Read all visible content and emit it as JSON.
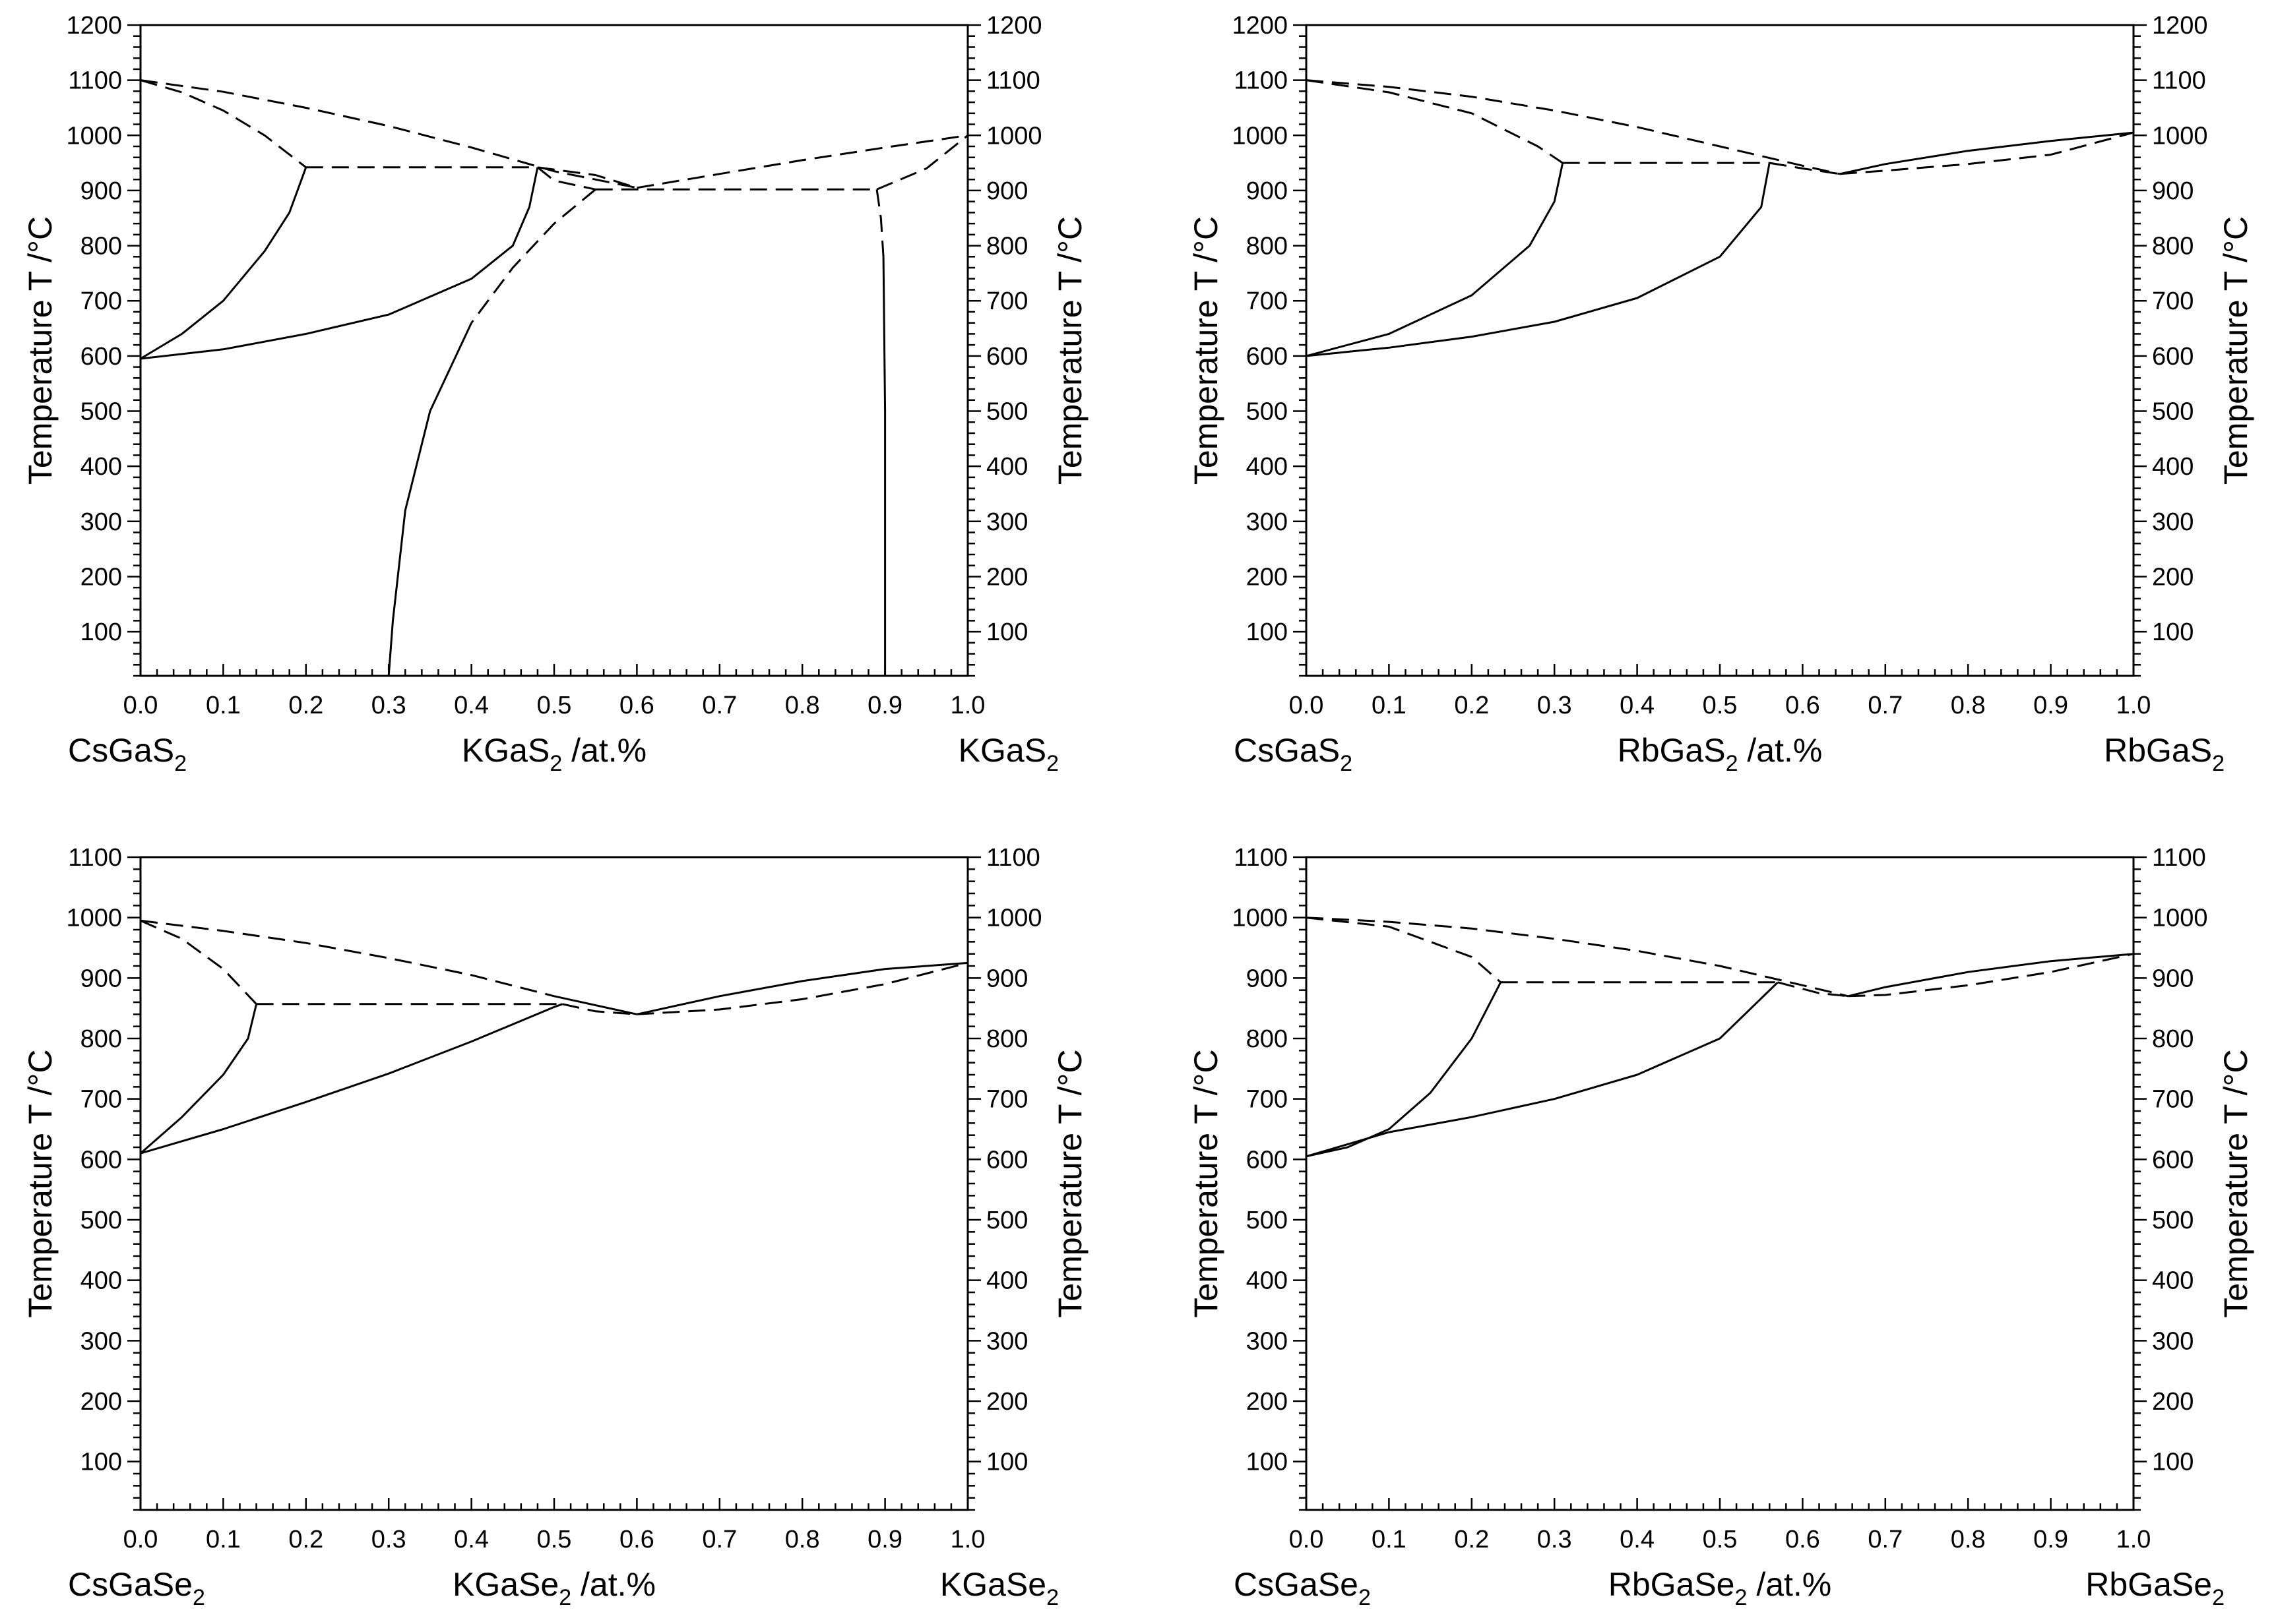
{
  "chart_data": [
    {
      "id": "cs-k-s",
      "type": "line",
      "subtype": "phase-diagram",
      "title": "",
      "ylabel": "Temperature T /°C",
      "y2label": "Temperature T /°C",
      "xlabel": {
        "base": "KGaS",
        "sub": "2",
        "suffix": " /at.%"
      },
      "left_component": {
        "base": "CsGaS",
        "sub": "2"
      },
      "right_component": {
        "base": "KGaS",
        "sub": "2"
      },
      "xlim": [
        0,
        1
      ],
      "ylim": [
        20,
        1200
      ],
      "x_ticks": [
        "0.0",
        "0.1",
        "0.2",
        "0.3",
        "0.4",
        "0.5",
        "0.6",
        "0.7",
        "0.8",
        "0.9",
        "1.0"
      ],
      "y_ticks": [
        "100",
        "200",
        "300",
        "400",
        "500",
        "600",
        "700",
        "800",
        "900",
        "1000",
        "1100",
        "1200"
      ],
      "series": [
        {
          "name": "liquidus-left",
          "style": "dashed",
          "x": [
            0,
            0.1,
            0.2,
            0.3,
            0.4,
            0.5,
            0.6
          ],
          "y": [
            1100,
            1079,
            1050,
            1017,
            978,
            935,
            905
          ]
        },
        {
          "name": "solvus-a-upper",
          "style": "dashed",
          "x": [
            0,
            0.05,
            0.1,
            0.15,
            0.2
          ],
          "y": [
            1100,
            1078,
            1045,
            1000,
            942
          ]
        },
        {
          "name": "peritectic-line",
          "style": "dashed",
          "x": [
            0.2,
            0.48
          ],
          "y": [
            942,
            942
          ]
        },
        {
          "name": "solvus-a-lower",
          "style": "solid",
          "x": [
            0,
            0.05,
            0.1,
            0.15,
            0.18,
            0.2
          ],
          "y": [
            595,
            640,
            700,
            790,
            860,
            942
          ]
        },
        {
          "name": "solidus-b",
          "style": "solid",
          "x": [
            0,
            0.1,
            0.2,
            0.3,
            0.4,
            0.45,
            0.47,
            0.48
          ],
          "y": [
            595,
            612,
            640,
            675,
            740,
            800,
            870,
            942
          ]
        },
        {
          "name": "peritectic-knee",
          "style": "dashed",
          "x": [
            0.48,
            0.5,
            0.55
          ],
          "y": [
            942,
            918,
            902
          ]
        },
        {
          "name": "minimum-curve",
          "style": "dashed",
          "x": [
            0.48,
            0.55,
            0.6
          ],
          "y": [
            942,
            928,
            905
          ]
        },
        {
          "name": "eutectic-line",
          "style": "dashed",
          "x": [
            0.55,
            0.89
          ],
          "y": [
            902,
            902
          ]
        },
        {
          "name": "liquidus-right",
          "style": "dashed",
          "x": [
            0.6,
            0.7,
            0.8,
            0.9,
            1.0
          ],
          "y": [
            905,
            930,
            955,
            978,
            1000
          ]
        },
        {
          "name": "solidus-right",
          "style": "dashed",
          "x": [
            0.89,
            0.95,
            1.0
          ],
          "y": [
            902,
            940,
            1000
          ]
        },
        {
          "name": "solvus-b-upper",
          "style": "dashed",
          "x": [
            0.55,
            0.5,
            0.45,
            0.4
          ],
          "y": [
            902,
            840,
            760,
            660
          ]
        },
        {
          "name": "solvus-b-lower",
          "style": "solid",
          "x": [
            0.4,
            0.35,
            0.32,
            0.305,
            0.3
          ],
          "y": [
            660,
            500,
            320,
            120,
            20
          ]
        },
        {
          "name": "solvus-c-upper",
          "style": "dashed",
          "x": [
            0.89,
            0.895,
            0.898
          ],
          "y": [
            902,
            850,
            780
          ]
        },
        {
          "name": "solvus-c-lower",
          "style": "solid",
          "x": [
            0.898,
            0.9,
            0.9
          ],
          "y": [
            780,
            500,
            20
          ]
        }
      ]
    },
    {
      "id": "cs-rb-s",
      "type": "line",
      "subtype": "phase-diagram",
      "title": "",
      "ylabel": "Temperature T /°C",
      "y2label": "Temperature T /°C",
      "xlabel": {
        "base": "RbGaS",
        "sub": "2",
        "suffix": " /at.%"
      },
      "left_component": {
        "base": "CsGaS",
        "sub": "2"
      },
      "right_component": {
        "base": "RbGaS",
        "sub": "2"
      },
      "xlim": [
        0,
        1
      ],
      "ylim": [
        20,
        1200
      ],
      "x_ticks": [
        "0.0",
        "0.1",
        "0.2",
        "0.3",
        "0.4",
        "0.5",
        "0.6",
        "0.7",
        "0.8",
        "0.9",
        "1.0"
      ],
      "y_ticks": [
        "100",
        "200",
        "300",
        "400",
        "500",
        "600",
        "700",
        "800",
        "900",
        "1000",
        "1100",
        "1200"
      ],
      "series": [
        {
          "name": "liquidus-left",
          "style": "dashed",
          "x": [
            0,
            0.1,
            0.2,
            0.3,
            0.4,
            0.5,
            0.6,
            0.645
          ],
          "y": [
            1100,
            1088,
            1070,
            1045,
            1015,
            980,
            945,
            930
          ]
        },
        {
          "name": "solvus-a-upper",
          "style": "dashed",
          "x": [
            0,
            0.1,
            0.2,
            0.28,
            0.31
          ],
          "y": [
            1100,
            1078,
            1040,
            980,
            950
          ]
        },
        {
          "name": "peritectic-line",
          "style": "dashed",
          "x": [
            0.31,
            0.56
          ],
          "y": [
            950,
            950
          ]
        },
        {
          "name": "solvus-a-lower",
          "style": "solid",
          "x": [
            0,
            0.1,
            0.2,
            0.27,
            0.3,
            0.31
          ],
          "y": [
            600,
            640,
            710,
            800,
            880,
            950
          ]
        },
        {
          "name": "solidus-b",
          "style": "solid",
          "x": [
            0,
            0.1,
            0.2,
            0.3,
            0.4,
            0.5,
            0.55,
            0.56
          ],
          "y": [
            600,
            615,
            635,
            662,
            705,
            780,
            870,
            950
          ]
        },
        {
          "name": "minimum-curve",
          "style": "dashed",
          "x": [
            0.56,
            0.6,
            0.645
          ],
          "y": [
            950,
            940,
            930
          ]
        },
        {
          "name": "liquidus-right",
          "style": "solid",
          "x": [
            0.645,
            0.7,
            0.8,
            0.9,
            1.0
          ],
          "y": [
            930,
            948,
            972,
            990,
            1005
          ]
        },
        {
          "name": "solidus-right",
          "style": "dashed",
          "x": [
            0.645,
            0.7,
            0.8,
            0.9,
            1.0
          ],
          "y": [
            930,
            936,
            948,
            965,
            1005
          ]
        }
      ]
    },
    {
      "id": "cs-k-se",
      "type": "line",
      "subtype": "phase-diagram",
      "title": "",
      "ylabel": "Temperature T /°C",
      "y2label": "Temperature T /°C",
      "xlabel": {
        "base": "KGaSe",
        "sub": "2",
        "suffix": " /at.%"
      },
      "left_component": {
        "base": "CsGaSe",
        "sub": "2"
      },
      "right_component": {
        "base": "KGaSe",
        "sub": "2"
      },
      "xlim": [
        0,
        1
      ],
      "ylim": [
        20,
        1100
      ],
      "x_ticks": [
        "0.0",
        "0.1",
        "0.2",
        "0.3",
        "0.4",
        "0.5",
        "0.6",
        "0.7",
        "0.8",
        "0.9",
        "1.0"
      ],
      "y_ticks": [
        "100",
        "200",
        "300",
        "400",
        "500",
        "600",
        "700",
        "800",
        "900",
        "1000",
        "1100"
      ],
      "series": [
        {
          "name": "liquidus-left",
          "style": "dashed",
          "x": [
            0,
            0.1,
            0.2,
            0.3,
            0.4,
            0.5
          ],
          "y": [
            995,
            978,
            958,
            933,
            905,
            870
          ]
        },
        {
          "name": "liquidus-left-end",
          "style": "solid",
          "x": [
            0.5,
            0.6
          ],
          "y": [
            870,
            840
          ]
        },
        {
          "name": "solvus-a-upper",
          "style": "dashed",
          "x": [
            0,
            0.05,
            0.1,
            0.14
          ],
          "y": [
            995,
            965,
            915,
            857
          ]
        },
        {
          "name": "peritectic-line",
          "style": "dashed",
          "x": [
            0.14,
            0.51
          ],
          "y": [
            857,
            857
          ]
        },
        {
          "name": "solvus-a-lower",
          "style": "solid",
          "x": [
            0,
            0.05,
            0.1,
            0.13,
            0.14
          ],
          "y": [
            610,
            670,
            740,
            800,
            857
          ]
        },
        {
          "name": "solidus-b",
          "style": "solid",
          "x": [
            0,
            0.1,
            0.2,
            0.3,
            0.4,
            0.5,
            0.51
          ],
          "y": [
            610,
            650,
            695,
            742,
            795,
            852,
            857
          ]
        },
        {
          "name": "minimum-curve",
          "style": "dashed",
          "x": [
            0.51,
            0.55,
            0.6
          ],
          "y": [
            857,
            845,
            840
          ]
        },
        {
          "name": "liquidus-right",
          "style": "solid",
          "x": [
            0.6,
            0.7,
            0.8,
            0.9,
            1.0
          ],
          "y": [
            840,
            870,
            895,
            915,
            925
          ]
        },
        {
          "name": "solidus-right",
          "style": "dashed",
          "x": [
            0.6,
            0.7,
            0.8,
            0.9,
            1.0
          ],
          "y": [
            840,
            848,
            865,
            890,
            925
          ]
        }
      ]
    },
    {
      "id": "cs-rb-se",
      "type": "line",
      "subtype": "phase-diagram",
      "title": "",
      "ylabel": "Temperature T /°C",
      "y2label": "Temperature T /°C",
      "xlabel": {
        "base": "RbGaSe",
        "sub": "2",
        "suffix": " /at.%"
      },
      "left_component": {
        "base": "CsGaSe",
        "sub": "2"
      },
      "right_component": {
        "base": "RbGaSe",
        "sub": "2"
      },
      "xlim": [
        0,
        1
      ],
      "ylim": [
        20,
        1100
      ],
      "x_ticks": [
        "0.0",
        "0.1",
        "0.2",
        "0.3",
        "0.4",
        "0.5",
        "0.6",
        "0.7",
        "0.8",
        "0.9",
        "1.0"
      ],
      "y_ticks": [
        "100",
        "200",
        "300",
        "400",
        "500",
        "600",
        "700",
        "800",
        "900",
        "1000",
        "1100"
      ],
      "series": [
        {
          "name": "liquidus-left",
          "style": "dashed",
          "x": [
            0,
            0.1,
            0.2,
            0.3,
            0.4,
            0.5,
            0.6,
            0.655
          ],
          "y": [
            1000,
            993,
            982,
            965,
            945,
            920,
            888,
            870
          ]
        },
        {
          "name": "solvus-a-upper",
          "style": "dashed",
          "x": [
            0,
            0.1,
            0.2,
            0.235
          ],
          "y": [
            1000,
            985,
            935,
            893
          ]
        },
        {
          "name": "peritectic-line",
          "style": "dashed",
          "x": [
            0.235,
            0.57
          ],
          "y": [
            893,
            893
          ]
        },
        {
          "name": "solvus-a-lower",
          "style": "solid",
          "x": [
            0,
            0.05,
            0.1,
            0.15,
            0.2,
            0.235
          ],
          "y": [
            605,
            620,
            650,
            710,
            800,
            893
          ]
        },
        {
          "name": "solidus-b",
          "style": "solid",
          "x": [
            0,
            0.1,
            0.2,
            0.3,
            0.4,
            0.5,
            0.57
          ],
          "y": [
            605,
            645,
            670,
            700,
            740,
            800,
            893
          ]
        },
        {
          "name": "minimum-curve",
          "style": "dashed",
          "x": [
            0.57,
            0.62,
            0.655
          ],
          "y": [
            893,
            875,
            870
          ]
        },
        {
          "name": "liquidus-right",
          "style": "solid",
          "x": [
            0.655,
            0.7,
            0.8,
            0.9,
            1.0
          ],
          "y": [
            870,
            885,
            910,
            928,
            940
          ]
        },
        {
          "name": "solidus-right",
          "style": "dashed",
          "x": [
            0.655,
            0.7,
            0.8,
            0.9,
            1.0
          ],
          "y": [
            870,
            872,
            888,
            910,
            940
          ]
        }
      ]
    }
  ]
}
